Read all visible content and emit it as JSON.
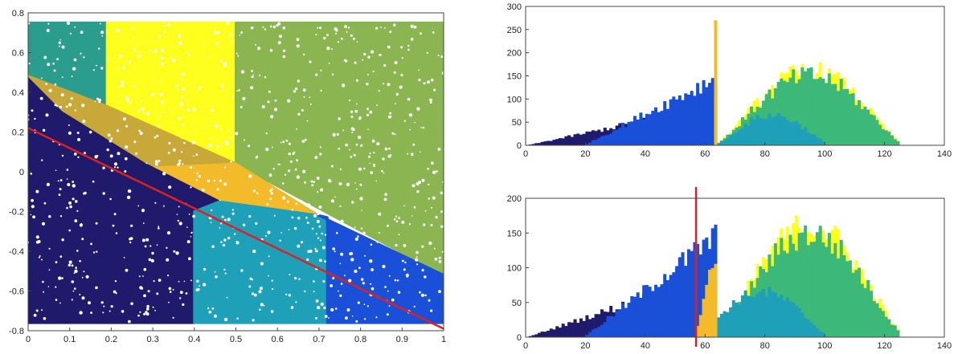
{
  "chart_data": [
    {
      "type": "scatter",
      "title": "",
      "xlabel": "",
      "ylabel": "",
      "xlim": [
        0,
        1
      ],
      "ylim": [
        -0.8,
        0.8
      ],
      "x_ticks": [
        "0",
        "0.1",
        "0.2",
        "0.3",
        "0.4",
        "0.5",
        "0.6",
        "0.7",
        "0.8",
        "0.9",
        "1"
      ],
      "y_ticks": [
        "-0.8",
        "-0.6",
        "-0.4",
        "-0.2",
        "0",
        "0.2",
        "0.4",
        "0.6",
        "0.8"
      ],
      "regions": [
        {
          "color": "#2a9d8f",
          "polygon": [
            [
              -0.01,
              0.75
            ],
            [
              0.19,
              0.75
            ],
            [
              0.19,
              0.33
            ],
            [
              -0.01,
              0.49
            ]
          ]
        },
        {
          "color": "#ffff1e",
          "polygon": [
            [
              0.19,
              0.75
            ],
            [
              0.5,
              0.75
            ],
            [
              0.5,
              0.04
            ],
            [
              0.19,
              0.33
            ]
          ]
        },
        {
          "color": "#8ab550",
          "polygon": [
            [
              0.5,
              0.75
            ],
            [
              1.0,
              0.75
            ],
            [
              1.0,
              -0.52
            ],
            [
              0.5,
              0.04
            ]
          ]
        },
        {
          "color": "#c9a83a",
          "polygon": [
            [
              -0.01,
              0.49
            ],
            [
              0.19,
              0.33
            ],
            [
              0.5,
              0.04
            ],
            [
              0.66,
              -0.17
            ],
            [
              0.28,
              0.04
            ],
            [
              0.08,
              0.3
            ]
          ]
        },
        {
          "color": "#f3bb2a",
          "polygon": [
            [
              0.5,
              0.04
            ],
            [
              0.66,
              -0.17
            ],
            [
              0.7,
              -0.22
            ],
            [
              0.46,
              -0.15
            ],
            [
              0.3,
              0.02
            ]
          ]
        },
        {
          "color": "#1f1a6b",
          "polygon": [
            [
              -0.01,
              0.49
            ],
            [
              0.08,
              0.3
            ],
            [
              0.28,
              0.04
            ],
            [
              0.46,
              -0.15
            ],
            [
              0.4,
              -0.2
            ],
            [
              0.4,
              -0.76
            ],
            [
              -0.01,
              -0.76
            ]
          ]
        },
        {
          "color": "#1ea0b8",
          "polygon": [
            [
              0.4,
              -0.2
            ],
            [
              0.46,
              -0.15
            ],
            [
              0.7,
              -0.22
            ],
            [
              0.72,
              -0.23
            ],
            [
              0.72,
              -0.76
            ],
            [
              0.4,
              -0.76
            ]
          ]
        },
        {
          "color": "#1a4fd8",
          "polygon": [
            [
              0.72,
              -0.23
            ],
            [
              0.7,
              -0.22
            ],
            [
              1.0,
              -0.52
            ],
            [
              1.0,
              -0.76
            ],
            [
              0.72,
              -0.76
            ]
          ]
        }
      ],
      "line": {
        "color": "#e02020",
        "x": [
          0,
          1
        ],
        "y": [
          0.22,
          -0.79
        ]
      }
    },
    {
      "type": "bar",
      "xlim": [
        0,
        140
      ],
      "ylim": [
        0,
        300
      ],
      "x_ticks": [
        "0",
        "20",
        "40",
        "60",
        "80",
        "100",
        "120",
        "140"
      ],
      "y_ticks": [
        "0",
        "50",
        "100",
        "150",
        "200",
        "250",
        "300"
      ],
      "series": [
        {
          "color": "#ffff1e",
          "x": [
            0,
            64,
            125
          ],
          "y": [
            0,
            0,
            0
          ],
          "peak": 160,
          "range": [
            64,
            125
          ]
        },
        {
          "color": "#1f1a6b",
          "range": [
            1,
            64
          ],
          "peak": 85
        },
        {
          "color": "#1a4fd8",
          "range": [
            20,
            64
          ],
          "peak": 145
        },
        {
          "color": "#3cb878",
          "range": [
            64,
            125
          ],
          "peak": 150
        },
        {
          "color": "#1ea0b8",
          "range": [
            64,
            100
          ],
          "peak": 65
        },
        {
          "color": "#f3bb2a",
          "x": [
            63
          ],
          "y": [
            270
          ]
        }
      ]
    },
    {
      "type": "bar",
      "xlim": [
        0,
        140
      ],
      "ylim": [
        0,
        200
      ],
      "x_ticks": [
        "0",
        "20",
        "40",
        "60",
        "80",
        "100",
        "120",
        "140"
      ],
      "y_ticks": [
        "0",
        "50",
        "100",
        "150",
        "200"
      ],
      "series": [
        {
          "color": "#ffff1e",
          "range": [
            64,
            125
          ],
          "peak": 160
        },
        {
          "color": "#1f1a6b",
          "range": [
            1,
            57
          ],
          "peak": 80
        },
        {
          "color": "#1a4fd8",
          "range": [
            20,
            64
          ],
          "peak": 145
        },
        {
          "color": "#3cb878",
          "range": [
            64,
            125
          ],
          "peak": 148
        },
        {
          "color": "#1ea0b8",
          "range": [
            57,
            100
          ],
          "peak": 65
        },
        {
          "color": "#f3bb2a",
          "range": [
            57,
            64
          ],
          "peak": 120
        }
      ],
      "vline": {
        "color": "#e02020",
        "x": 57
      }
    }
  ]
}
